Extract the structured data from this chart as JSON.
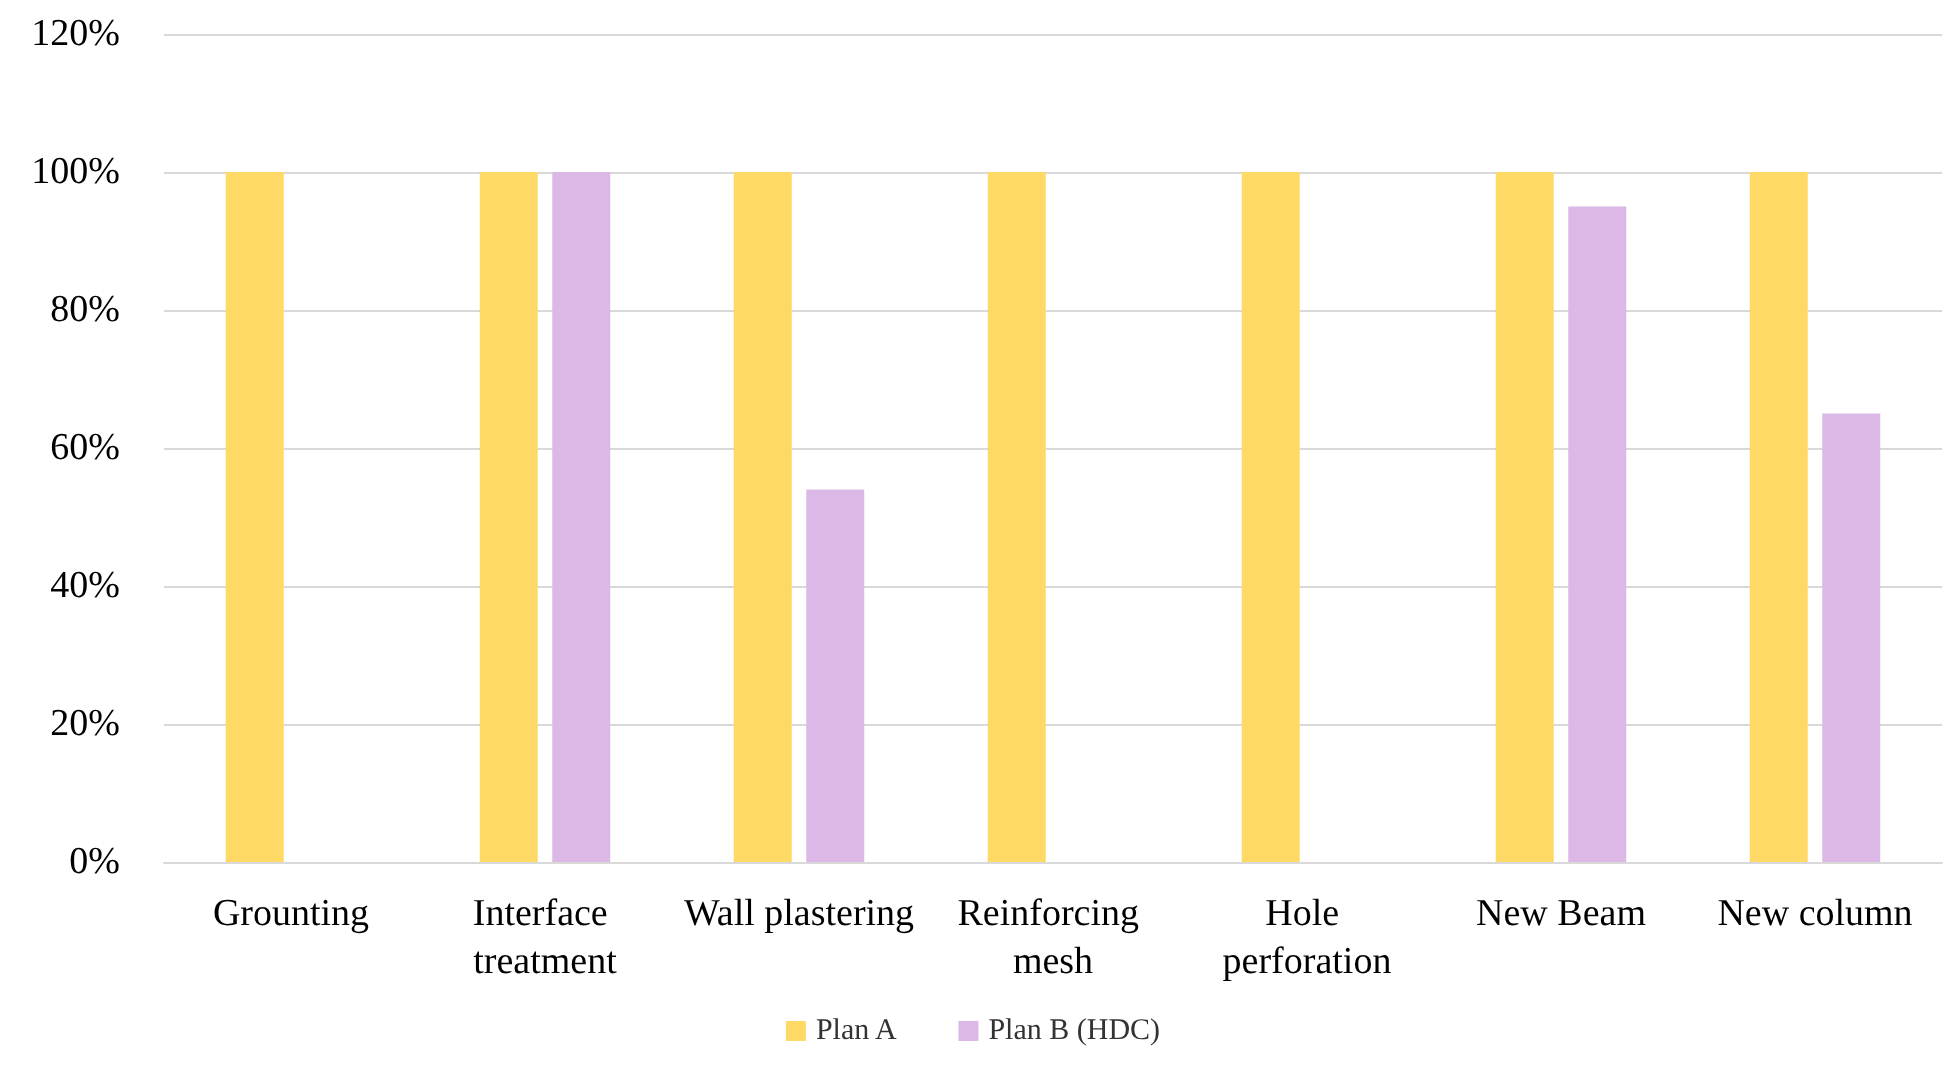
{
  "chart_data": {
    "type": "bar",
    "categories": [
      "Grounting",
      "Interface treatment",
      "Wall plastering",
      "Reinforcing mesh",
      "Hole perforation",
      "New Beam",
      "New column"
    ],
    "series": [
      {
        "name": "Plan A",
        "color": "#ffd966",
        "values": [
          100,
          100,
          100,
          100,
          100,
          100,
          100
        ]
      },
      {
        "name": "Plan B (HDC)",
        "color": "#dbb8e5",
        "values": [
          0,
          100,
          54,
          0,
          0,
          95,
          65
        ]
      }
    ],
    "ylim": [
      0,
      120
    ],
    "yticks": [
      {
        "value": 0,
        "label": "0%"
      },
      {
        "value": 20,
        "label": "20%"
      },
      {
        "value": 40,
        "label": "40%"
      },
      {
        "value": 60,
        "label": "60%"
      },
      {
        "value": 80,
        "label": "80%"
      },
      {
        "value": 100,
        "label": "100%"
      },
      {
        "value": 120,
        "label": "120%"
      }
    ],
    "grid": "y",
    "legend": "bottom"
  }
}
